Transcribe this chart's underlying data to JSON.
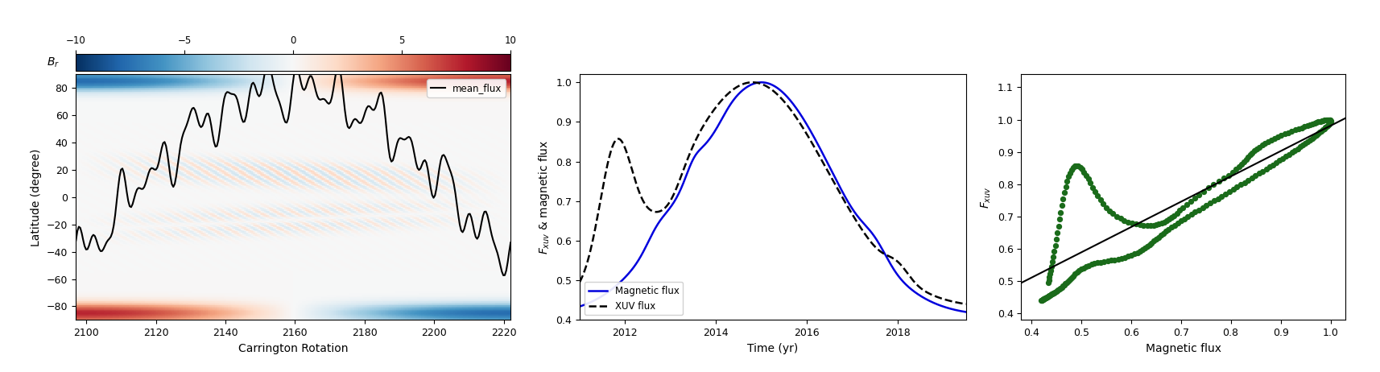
{
  "panel1": {
    "xlabel": "Carrington Rotation",
    "ylabel": "Latitude (degree)",
    "colorbar_label": "B_r",
    "colorbar_ticks": [
      -10,
      -5,
      0,
      5,
      10
    ],
    "xlim": [
      2097,
      2222
    ],
    "ylim": [
      -90,
      90
    ],
    "yticks": [
      -80,
      -60,
      -40,
      -20,
      0,
      20,
      40,
      60,
      80
    ],
    "xticks": [
      2100,
      2120,
      2140,
      2160,
      2180,
      2200,
      2220
    ],
    "vmin": -10,
    "vmax": 10,
    "legend_label": "mean_flux"
  },
  "panel2": {
    "xlabel": "Time (yr)",
    "xlim": [
      2011.0,
      2019.5
    ],
    "ylim": [
      0.4,
      1.02
    ],
    "yticks": [
      0.4,
      0.5,
      0.6,
      0.7,
      0.8,
      0.9,
      1.0
    ],
    "xticks": [
      2012,
      2014,
      2016,
      2018
    ],
    "legend_magnetic": "Magnetic flux",
    "legend_xuv": "XUV flux",
    "line_color_magnetic": "#0000dd",
    "line_color_xuv": "black"
  },
  "panel3": {
    "xlabel": "Magnetic flux",
    "ylabel": "F_xuv",
    "xlim": [
      0.38,
      1.03
    ],
    "ylim": [
      0.38,
      1.14
    ],
    "xticks": [
      0.4,
      0.5,
      0.6,
      0.7,
      0.8,
      0.9,
      1.0
    ],
    "yticks": [
      0.4,
      0.5,
      0.6,
      0.7,
      0.8,
      0.9,
      1.0,
      1.1
    ],
    "scatter_color": "#1a6b1a",
    "line_color": "black"
  }
}
